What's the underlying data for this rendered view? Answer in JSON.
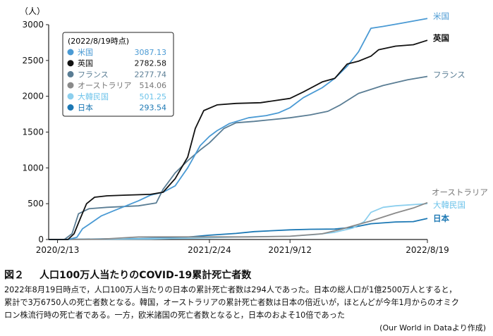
{
  "chart_data": {
    "type": "line",
    "ylabel": "（人）",
    "ylim": [
      0,
      3000
    ],
    "yticks": [
      "0",
      "500",
      "1000",
      "1500",
      "2000",
      "2500",
      "3000"
    ],
    "xlim": [
      "2020-01-22",
      "2022-08-19"
    ],
    "xticks": [
      {
        "date": "2020-02-13",
        "label": "2020/2/13"
      },
      {
        "date": "2021-02-24",
        "label": "2021/2/24"
      },
      {
        "date": "2021-09-12",
        "label": "2021/9/12"
      },
      {
        "date": "2022-08-19",
        "label": "2022/8/19"
      }
    ],
    "legend": {
      "title": "(2022/8/19時点)",
      "placement": "top-left",
      "entries": [
        {
          "name": "米国",
          "value": "3087.13"
        },
        {
          "name": "英国",
          "value": "2782.58"
        },
        {
          "name": "フランス",
          "value": "2277.74"
        },
        {
          "name": "オーストラリア",
          "value": "514.06"
        },
        {
          "name": "大韓民国",
          "value": "501.25"
        },
        {
          "name": "日本",
          "value": "293.54"
        }
      ]
    },
    "series": [
      {
        "name": "米国",
        "color": "#4a9ad4",
        "label_color": "#4a9ad4",
        "points": [
          [
            "2020-03-10",
            0
          ],
          [
            "2020-04-01",
            30
          ],
          [
            "2020-04-15",
            150
          ],
          [
            "2020-05-01",
            210
          ],
          [
            "2020-06-01",
            330
          ],
          [
            "2020-07-01",
            400
          ],
          [
            "2020-08-01",
            470
          ],
          [
            "2020-09-01",
            540
          ],
          [
            "2020-10-01",
            620
          ],
          [
            "2020-11-01",
            660
          ],
          [
            "2020-12-01",
            750
          ],
          [
            "2021-01-01",
            1000
          ],
          [
            "2021-02-01",
            1310
          ],
          [
            "2021-02-24",
            1440
          ],
          [
            "2021-03-15",
            1520
          ],
          [
            "2021-04-15",
            1620
          ],
          [
            "2021-06-01",
            1700
          ],
          [
            "2021-07-15",
            1730
          ],
          [
            "2021-08-15",
            1770
          ],
          [
            "2021-09-12",
            1840
          ],
          [
            "2021-10-15",
            1980
          ],
          [
            "2021-12-01",
            2120
          ],
          [
            "2022-01-01",
            2250
          ],
          [
            "2022-02-01",
            2420
          ],
          [
            "2022-03-01",
            2620
          ],
          [
            "2022-04-01",
            2950
          ],
          [
            "2022-05-01",
            2975
          ],
          [
            "2022-06-15",
            3020
          ],
          [
            "2022-08-19",
            3087
          ]
        ]
      },
      {
        "name": "英国",
        "color": "#111111",
        "label_color": "#111111",
        "points": [
          [
            "2020-03-10",
            0
          ],
          [
            "2020-03-25",
            80
          ],
          [
            "2020-04-10",
            300
          ],
          [
            "2020-04-25",
            500
          ],
          [
            "2020-05-15",
            590
          ],
          [
            "2020-06-15",
            610
          ],
          [
            "2020-08-01",
            620
          ],
          [
            "2020-10-01",
            630
          ],
          [
            "2020-11-01",
            660
          ],
          [
            "2020-12-01",
            850
          ],
          [
            "2021-01-01",
            1150
          ],
          [
            "2021-01-20",
            1550
          ],
          [
            "2021-02-10",
            1800
          ],
          [
            "2021-03-15",
            1880
          ],
          [
            "2021-05-01",
            1900
          ],
          [
            "2021-07-01",
            1910
          ],
          [
            "2021-09-12",
            1970
          ],
          [
            "2021-10-15",
            2060
          ],
          [
            "2021-12-01",
            2200
          ],
          [
            "2022-01-01",
            2250
          ],
          [
            "2022-02-01",
            2450
          ],
          [
            "2022-03-01",
            2490
          ],
          [
            "2022-04-01",
            2560
          ],
          [
            "2022-04-20",
            2650
          ],
          [
            "2022-06-01",
            2700
          ],
          [
            "2022-07-15",
            2720
          ],
          [
            "2022-08-19",
            2782
          ]
        ]
      },
      {
        "name": "フランス",
        "color": "#5a7d94",
        "label_color": "#5a7d94",
        "points": [
          [
            "2020-03-01",
            0
          ],
          [
            "2020-03-20",
            80
          ],
          [
            "2020-04-05",
            360
          ],
          [
            "2020-05-01",
            430
          ],
          [
            "2020-06-15",
            450
          ],
          [
            "2020-09-01",
            470
          ],
          [
            "2020-10-15",
            510
          ],
          [
            "2020-11-01",
            700
          ],
          [
            "2020-12-01",
            930
          ],
          [
            "2021-01-01",
            1100
          ],
          [
            "2021-02-01",
            1250
          ],
          [
            "2021-02-24",
            1350
          ],
          [
            "2021-04-01",
            1550
          ],
          [
            "2021-05-01",
            1630
          ],
          [
            "2021-06-15",
            1650
          ],
          [
            "2021-09-12",
            1700
          ],
          [
            "2021-11-01",
            1740
          ],
          [
            "2021-12-15",
            1790
          ],
          [
            "2022-01-15",
            1880
          ],
          [
            "2022-03-01",
            2040
          ],
          [
            "2022-05-01",
            2150
          ],
          [
            "2022-07-01",
            2230
          ],
          [
            "2022-08-19",
            2277
          ]
        ]
      },
      {
        "name": "オーストラリア",
        "color": "#8a8a8a",
        "label_color": "#777777",
        "points": [
          [
            "2020-03-01",
            0
          ],
          [
            "2020-06-01",
            5
          ],
          [
            "2020-07-15",
            20
          ],
          [
            "2020-09-01",
            35
          ],
          [
            "2020-11-01",
            36
          ],
          [
            "2021-06-01",
            36
          ],
          [
            "2021-09-12",
            45
          ],
          [
            "2021-12-01",
            80
          ],
          [
            "2022-01-15",
            140
          ],
          [
            "2022-02-15",
            190
          ],
          [
            "2022-04-01",
            260
          ],
          [
            "2022-06-01",
            370
          ],
          [
            "2022-07-15",
            440
          ],
          [
            "2022-08-19",
            514
          ]
        ]
      },
      {
        "name": "大韓民国",
        "color": "#8ccfee",
        "label_color": "#6cc3ea",
        "points": [
          [
            "2020-02-20",
            0
          ],
          [
            "2020-03-15",
            3
          ],
          [
            "2020-06-01",
            5
          ],
          [
            "2020-10-01",
            8
          ],
          [
            "2021-01-01",
            18
          ],
          [
            "2021-06-01",
            38
          ],
          [
            "2021-09-12",
            45
          ],
          [
            "2021-11-15",
            70
          ],
          [
            "2022-01-01",
            100
          ],
          [
            "2022-02-15",
            160
          ],
          [
            "2022-03-15",
            250
          ],
          [
            "2022-04-01",
            380
          ],
          [
            "2022-05-01",
            450
          ],
          [
            "2022-06-01",
            470
          ],
          [
            "2022-08-19",
            501
          ]
        ]
      },
      {
        "name": "日本",
        "color": "#1c78b4",
        "label_color": "#1c78b4",
        "points": [
          [
            "2020-02-13",
            0
          ],
          [
            "2020-04-01",
            5
          ],
          [
            "2020-06-01",
            8
          ],
          [
            "2020-09-01",
            12
          ],
          [
            "2020-12-01",
            22
          ],
          [
            "2021-01-15",
            40
          ],
          [
            "2021-02-24",
            60
          ],
          [
            "2021-05-01",
            85
          ],
          [
            "2021-06-15",
            110
          ],
          [
            "2021-09-12",
            135
          ],
          [
            "2021-11-01",
            143
          ],
          [
            "2022-01-01",
            146
          ],
          [
            "2022-02-15",
            170
          ],
          [
            "2022-04-01",
            220
          ],
          [
            "2022-06-01",
            245
          ],
          [
            "2022-07-15",
            250
          ],
          [
            "2022-08-19",
            294
          ]
        ]
      }
    ]
  },
  "figure": {
    "number": "図２",
    "title": "人口100万人当たりのCOVID-19累計死亡者数",
    "caption_lines": [
      "2022年8月19日時点で，人口100万人当たりの日本の累計死亡者数は294人であった。日本の総人口が1億2500万人とすると，",
      "累計で3万6750人の死亡者数となる。韓国，オーストラリアの累計死亡者数は日本の倍近いが，ほとんどが今年1月からのオミク",
      "ロン株流行時の死亡者である。一方，欧米諸国の死亡者数となると，日本のおよそ10倍であった"
    ],
    "source": "(Our World in Dataより作成)"
  }
}
